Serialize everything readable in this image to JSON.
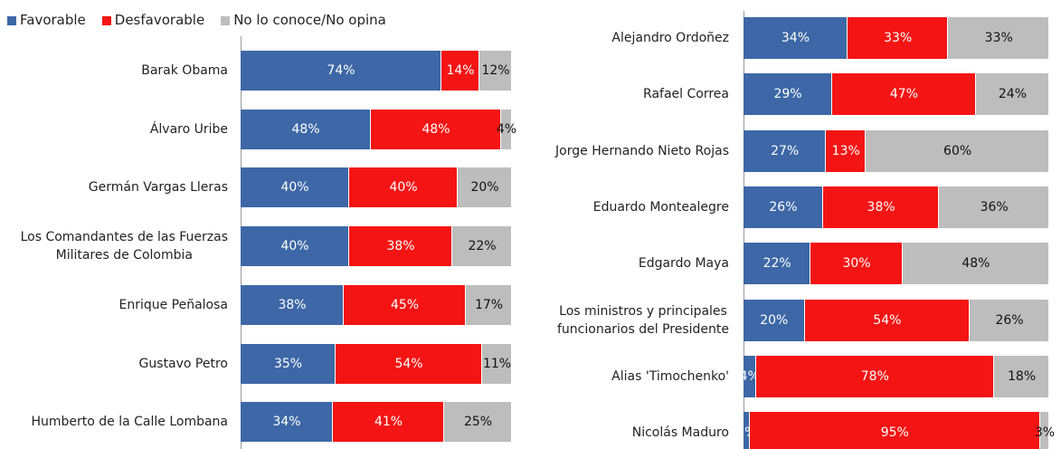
{
  "chart_data": [
    {
      "type": "stacked-barh",
      "categories": [
        "Barak Obama",
        "Álvaro Uribe",
        "Germán Vargas Lleras",
        "Los Comandantes de las Fuerzas\nMilitares de Colombia",
        "Enrique Peñalosa",
        "Gustavo Petro",
        "Humberto de la Calle Lombana"
      ],
      "series": [
        {
          "name": "Favorable",
          "color": "#3d67a6",
          "values": [
            74,
            48,
            40,
            40,
            38,
            35,
            34
          ],
          "value_labels": [
            "74%",
            "48%",
            "40%",
            "40%",
            "38%",
            "35%",
            "34%"
          ]
        },
        {
          "name": "Desfavorable",
          "color": "#f41414",
          "values": [
            14,
            48,
            40,
            38,
            45,
            54,
            41
          ],
          "value_labels": [
            "14%",
            "48%",
            "40%",
            "38%",
            "45%",
            "54%",
            "41%"
          ]
        },
        {
          "name": "No lo conoce/No opina",
          "color": "#bdbdbd",
          "values": [
            12,
            4,
            20,
            22,
            17,
            11,
            25
          ],
          "value_labels": [
            "12%",
            "4%",
            "20%",
            "22%",
            "17%",
            "11%",
            "25%"
          ]
        }
      ]
    },
    {
      "type": "stacked-barh",
      "categories": [
        "Alejandro Ordoñez",
        "Rafael Correa",
        "Jorge Hernando Nieto Rojas",
        "Eduardo Montealegre",
        "Edgardo Maya",
        "Los ministros y principales\nfuncionarios del Presidente",
        "Alias 'Timochenko'",
        "Nicolás Maduro"
      ],
      "series": [
        {
          "color": "#3d67a6",
          "values": [
            34,
            29,
            27,
            26,
            22,
            20,
            4,
            2
          ],
          "value_labels": [
            "34%",
            "29%",
            "27%",
            "26%",
            "22%",
            "20%",
            "4%",
            "2%"
          ]
        },
        {
          "color": "#f41414",
          "values": [
            33,
            47,
            13,
            38,
            30,
            54,
            78,
            95
          ],
          "value_labels": [
            "33%",
            "47%",
            "13%",
            "38%",
            "30%",
            "54%",
            "78%",
            "95%"
          ]
        },
        {
          "color": "#bdbdbd",
          "values": [
            33,
            24,
            60,
            36,
            48,
            26,
            18,
            3
          ],
          "value_labels": [
            "33%",
            "24%",
            "60%",
            "36%",
            "48%",
            "26%",
            "18%",
            "3%"
          ]
        }
      ]
    }
  ]
}
